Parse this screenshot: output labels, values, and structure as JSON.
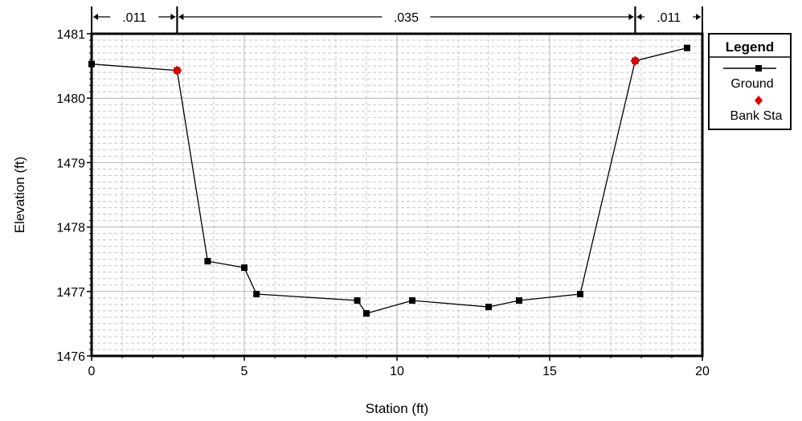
{
  "chart_data": {
    "type": "line",
    "title": "",
    "xlabel": "Station (ft)",
    "ylabel": "Elevation (ft)",
    "xlim": [
      0,
      20
    ],
    "ylim": [
      1476,
      1481
    ],
    "xticks": [
      "0",
      "5",
      "10",
      "15",
      "20"
    ],
    "yticks": [
      "1476",
      "1477",
      "1478",
      "1479",
      "1480",
      "1481"
    ],
    "grid": true,
    "legend_position": "right",
    "legend": {
      "title": "Legend",
      "entries": [
        {
          "label": "Ground",
          "marker": "square",
          "color": "#000000"
        },
        {
          "label": "Bank Sta",
          "marker": "diamond",
          "color": "#e00000"
        }
      ]
    },
    "series": [
      {
        "name": "Ground",
        "color": "#000000",
        "x": [
          0,
          2.8,
          3.8,
          5.0,
          5.4,
          8.7,
          9.0,
          10.5,
          13.0,
          14.0,
          16.0,
          17.8,
          19.5
        ],
        "y": [
          1480.53,
          1480.43,
          1477.47,
          1477.37,
          1476.96,
          1476.86,
          1476.66,
          1476.86,
          1476.76,
          1476.86,
          1476.96,
          1480.58,
          1480.78
        ]
      },
      {
        "name": "Bank Sta",
        "color": "#e00000",
        "x": [
          2.8,
          17.8
        ],
        "y": [
          1480.43,
          1480.58
        ]
      }
    ],
    "mannings_n": [
      {
        "label": ".011",
        "from": 0,
        "to": 2.8
      },
      {
        "label": ".035",
        "from": 2.8,
        "to": 17.8
      },
      {
        "label": ".011",
        "from": 17.8,
        "to": 20
      }
    ]
  }
}
